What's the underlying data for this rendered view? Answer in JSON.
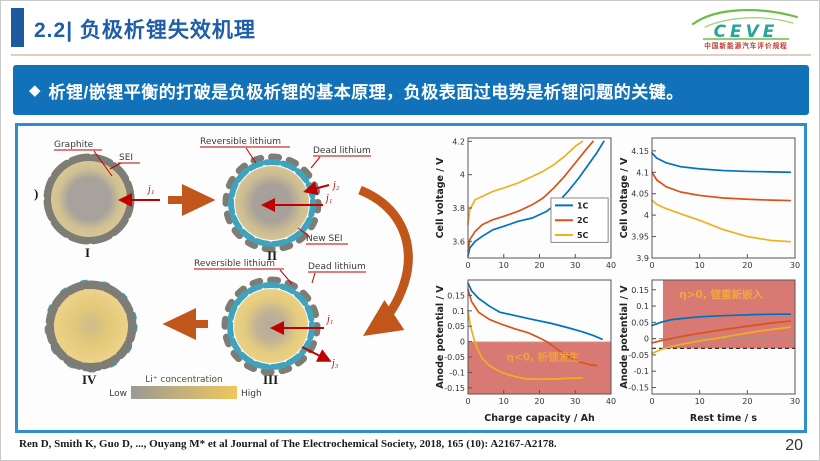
{
  "header": {
    "title": "2.2| 负极析锂失效机理",
    "logo": {
      "brand": "CEVE",
      "subtitle": "中国新能源汽车评价规程"
    }
  },
  "banner": {
    "bullet": "◆",
    "text": "析锂/嵌锂平衡的打破是负极析锂的基本原理，负极表面过电势是析锂问题的关键。"
  },
  "diagram": {
    "figure_label": ")",
    "graphite": "Graphite",
    "sei": "SEI",
    "reversible_lithium": "Reversible lithium",
    "dead_lithium": "Dead lithium",
    "new_sei": "New SEI",
    "j1": "j₁",
    "j2": "j₂",
    "j3": "j₃",
    "stage1": "I",
    "stage2": "II",
    "stage3": "III",
    "stage4": "IV",
    "colorbar": {
      "title": "Li⁺ concentration",
      "low": "Low",
      "high": "High"
    }
  },
  "chart_data": [
    {
      "type": "line",
      "ylabel": "Cell voltage / V",
      "xlabel": "",
      "xlim": [
        0,
        40
      ],
      "ylim": [
        3.5,
        4.22
      ],
      "xticks": [
        0,
        10,
        20,
        30,
        40
      ],
      "xtick_labels": [
        "0",
        "10",
        "20",
        "30",
        "40"
      ],
      "yticks": [
        3.6,
        3.8,
        4.0,
        4.2
      ],
      "ytick_labels": [
        "3.6",
        "3.8",
        "4",
        "4.2"
      ],
      "legend": {
        "fx": 0.58,
        "fy": 0.5,
        "fw": 0.4,
        "fh": 0.37
      },
      "series": [
        {
          "name": "1C",
          "color": "#0072BD",
          "x": [
            0,
            0.5,
            2,
            4,
            7,
            10,
            14,
            18,
            22,
            25,
            28,
            31,
            34,
            36,
            38
          ],
          "y": [
            3.51,
            3.56,
            3.6,
            3.63,
            3.67,
            3.69,
            3.72,
            3.74,
            3.78,
            3.83,
            3.9,
            3.98,
            4.07,
            4.13,
            4.2
          ]
        },
        {
          "name": "2C",
          "color": "#D95319",
          "x": [
            0,
            0.5,
            2,
            4,
            7,
            10,
            14,
            18,
            21,
            24,
            27,
            30,
            33,
            35
          ],
          "y": [
            3.54,
            3.61,
            3.66,
            3.7,
            3.73,
            3.75,
            3.78,
            3.82,
            3.86,
            3.92,
            3.99,
            4.07,
            4.15,
            4.2
          ]
        },
        {
          "name": "5C",
          "color": "#EDB120",
          "x": [
            0,
            0.5,
            2,
            4,
            7,
            10,
            14,
            18,
            21,
            24,
            27,
            30,
            32
          ],
          "y": [
            3.7,
            3.79,
            3.85,
            3.87,
            3.9,
            3.92,
            3.95,
            3.99,
            4.02,
            4.06,
            4.11,
            4.17,
            4.2
          ]
        }
      ]
    },
    {
      "type": "line",
      "ylabel": "Cell voltage / V",
      "xlabel": "",
      "xlim": [
        0,
        30
      ],
      "ylim": [
        3.9,
        4.18
      ],
      "xticks": [
        0,
        10,
        20,
        30
      ],
      "xtick_labels": [
        "0",
        "10",
        "20",
        "30"
      ],
      "yticks": [
        3.9,
        3.95,
        4.0,
        4.05,
        4.1,
        4.15
      ],
      "ytick_labels": [
        "3.9",
        "3.95",
        "4",
        "4.05",
        "4.1",
        "4.15"
      ],
      "series": [
        {
          "name": "1C",
          "color": "#0072BD",
          "x": [
            0,
            1,
            3,
            6,
            10,
            15,
            20,
            25,
            29
          ],
          "y": [
            4.145,
            4.133,
            4.122,
            4.113,
            4.108,
            4.104,
            4.102,
            4.101,
            4.1
          ]
        },
        {
          "name": "2C",
          "color": "#D95319",
          "x": [
            0,
            1,
            3,
            6,
            10,
            15,
            20,
            25,
            29
          ],
          "y": [
            4.1,
            4.082,
            4.066,
            4.054,
            4.046,
            4.04,
            4.037,
            4.035,
            4.034
          ]
        },
        {
          "name": "5C",
          "color": "#EDB120",
          "x": [
            0,
            1,
            3,
            6,
            10,
            15,
            20,
            25,
            29
          ],
          "y": [
            4.035,
            4.025,
            4.015,
            4.003,
            3.988,
            3.966,
            3.95,
            3.941,
            3.938
          ]
        }
      ]
    },
    {
      "type": "line",
      "ylabel": "Anode potential / V",
      "xlabel": "Charge capacity / Ah",
      "xlim": [
        0,
        40
      ],
      "ylim": [
        -0.17,
        0.2
      ],
      "xticks": [
        0,
        10,
        20,
        30,
        40
      ],
      "xtick_labels": [
        "0",
        "10",
        "20",
        "30",
        "40"
      ],
      "yticks": [
        -0.15,
        -0.1,
        -0.05,
        0,
        0.05,
        0.1,
        0.15
      ],
      "ytick_labels": [
        "-0.15",
        "-0.1",
        "-0.05",
        "0",
        "0.05",
        "0.1",
        "0.15"
      ],
      "regions": [
        {
          "x0": 0,
          "x1": 40,
          "y0": -0.17,
          "y1": 0,
          "color": "#d7726b",
          "opacity": 0.95
        }
      ],
      "hlines": [
        {
          "y": 0,
          "color": "#cccccc"
        }
      ],
      "annotations": [
        {
          "text": "η<0, 析锂发生",
          "x": 21,
          "y": -0.062,
          "color": "#f0a13c"
        }
      ],
      "series": [
        {
          "name": "1C",
          "color": "#0072BD",
          "x": [
            0,
            1,
            3,
            6,
            9,
            13,
            18,
            23,
            28,
            32,
            35,
            37.5
          ],
          "y": [
            0.19,
            0.165,
            0.14,
            0.115,
            0.095,
            0.085,
            0.072,
            0.06,
            0.045,
            0.032,
            0.02,
            0.008
          ]
        },
        {
          "name": "2C",
          "color": "#D95319",
          "x": [
            0,
            1,
            3,
            6,
            9,
            13,
            17,
            20,
            22,
            25,
            28,
            31,
            34,
            36
          ],
          "y": [
            0.17,
            0.13,
            0.095,
            0.072,
            0.058,
            0.042,
            0.028,
            0.012,
            0,
            -0.025,
            -0.048,
            -0.065,
            -0.075,
            -0.078
          ]
        },
        {
          "name": "5C",
          "color": "#EDB120",
          "x": [
            0,
            0.7,
            1.5,
            2.5,
            4,
            6,
            9,
            12,
            16,
            20,
            25,
            29,
            32
          ],
          "y": [
            0.1,
            0.05,
            0.015,
            -0.02,
            -0.055,
            -0.078,
            -0.098,
            -0.11,
            -0.121,
            -0.122,
            -0.121,
            -0.119,
            -0.118
          ]
        }
      ]
    },
    {
      "type": "line",
      "ylabel": "Anode potential / V",
      "xlabel": "Rest time / s",
      "xlim": [
        0,
        30
      ],
      "ylim": [
        -0.17,
        0.18
      ],
      "xticks": [
        0,
        10,
        20,
        30
      ],
      "xtick_labels": [
        "0",
        "10",
        "20",
        "30"
      ],
      "yticks": [
        -0.15,
        -0.1,
        -0.05,
        0,
        0.05,
        0.1,
        0.15
      ],
      "ytick_labels": [
        "-0.15",
        "-0.1",
        "-0.05",
        "0",
        "0.05",
        "0.1",
        "0.15"
      ],
      "regions": [
        {
          "x0": 2.3,
          "x1": 30,
          "y0": -0.03,
          "y1": 0.18,
          "color": "#d7726b",
          "opacity": 0.95
        }
      ],
      "hlines": [
        {
          "y": 0,
          "color": "#999999"
        },
        {
          "y": -0.03,
          "color": "#333333"
        }
      ],
      "annotations": [
        {
          "text": "η>0, 锂重新嵌入",
          "x": 14.5,
          "y": 0.125,
          "color": "#f0a83c"
        }
      ],
      "series": [
        {
          "name": "1C",
          "color": "#0072BD",
          "x": [
            0,
            2,
            4,
            7,
            10,
            14,
            18,
            22,
            26,
            29
          ],
          "y": [
            0.04,
            0.051,
            0.058,
            0.063,
            0.067,
            0.07,
            0.072,
            0.074,
            0.075,
            0.075
          ]
        },
        {
          "name": "2C",
          "color": "#D95319",
          "x": [
            0,
            2,
            4,
            6,
            9,
            12,
            16,
            20,
            24,
            27,
            29
          ],
          "y": [
            -0.013,
            -0.006,
            0,
            0.006,
            0.014,
            0.021,
            0.03,
            0.038,
            0.046,
            0.051,
            0.054
          ]
        },
        {
          "name": "5C",
          "color": "#EDB120",
          "x": [
            0,
            2,
            4,
            7,
            10,
            14,
            18,
            22,
            26,
            29
          ],
          "y": [
            -0.045,
            -0.033,
            -0.024,
            -0.015,
            -0.007,
            0.002,
            0.012,
            0.022,
            0.03,
            0.035
          ]
        }
      ]
    }
  ],
  "footer": {
    "citation": "Ren D, Smith K, Guo D, ..., Ouyang M* et al Journal of The Electrochemical Society, 2018, 165 (10): A2167-A2178.",
    "page_number": "20"
  },
  "colors": {
    "accent_blue": "#1172b9",
    "title_blue": "#1e5ea9",
    "box_border": "#2f8fce",
    "plating_region": "#d7726b",
    "orange_arrow": "#c0561a",
    "red_pointer": "#c00000",
    "teal_lithium": "#3fa3bd"
  }
}
